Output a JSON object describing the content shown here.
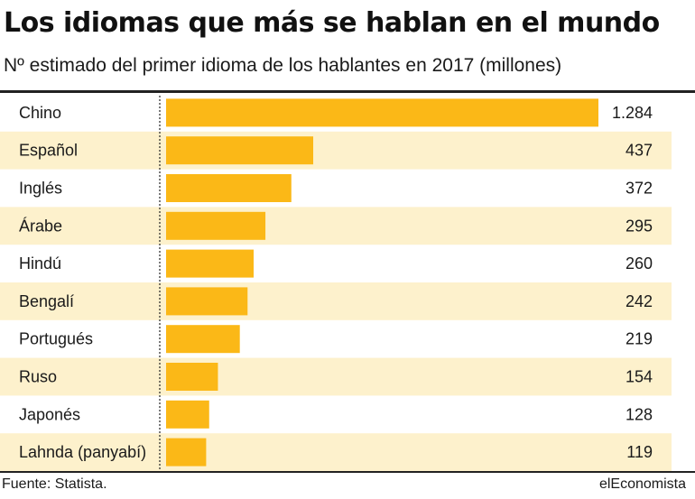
{
  "header": {
    "title": "Los idiomas que más se hablan en el mundo",
    "subtitle": "Nº estimado del primer idioma de los hablantes en 2017 (millones)"
  },
  "footer": {
    "source": "Fuente: Statista.",
    "brand": "elEconomista"
  },
  "colors": {
    "bar": "#fbb817",
    "stripe": "#fdf1cc",
    "background": "#ffffff",
    "rule": "#222222"
  },
  "chart_data": {
    "type": "bar",
    "orientation": "horizontal",
    "title": "Los idiomas que más se hablan en el mundo",
    "subtitle": "Nº estimado del primer idioma de los hablantes en 2017 (millones)",
    "categories": [
      "Chino",
      "Español",
      "Inglés",
      "Árabe",
      "Hindú",
      "Bengalí",
      "Portugués",
      "Ruso",
      "Japonés",
      "Lahnda (panyabí)"
    ],
    "values": [
      1284,
      437,
      372,
      295,
      260,
      242,
      219,
      154,
      128,
      119
    ],
    "value_labels": [
      "1.284",
      "437",
      "372",
      "295",
      "260",
      "242",
      "219",
      "154",
      "128",
      "119"
    ],
    "xlim": [
      0,
      1284
    ],
    "grid": false,
    "legend": "none"
  }
}
